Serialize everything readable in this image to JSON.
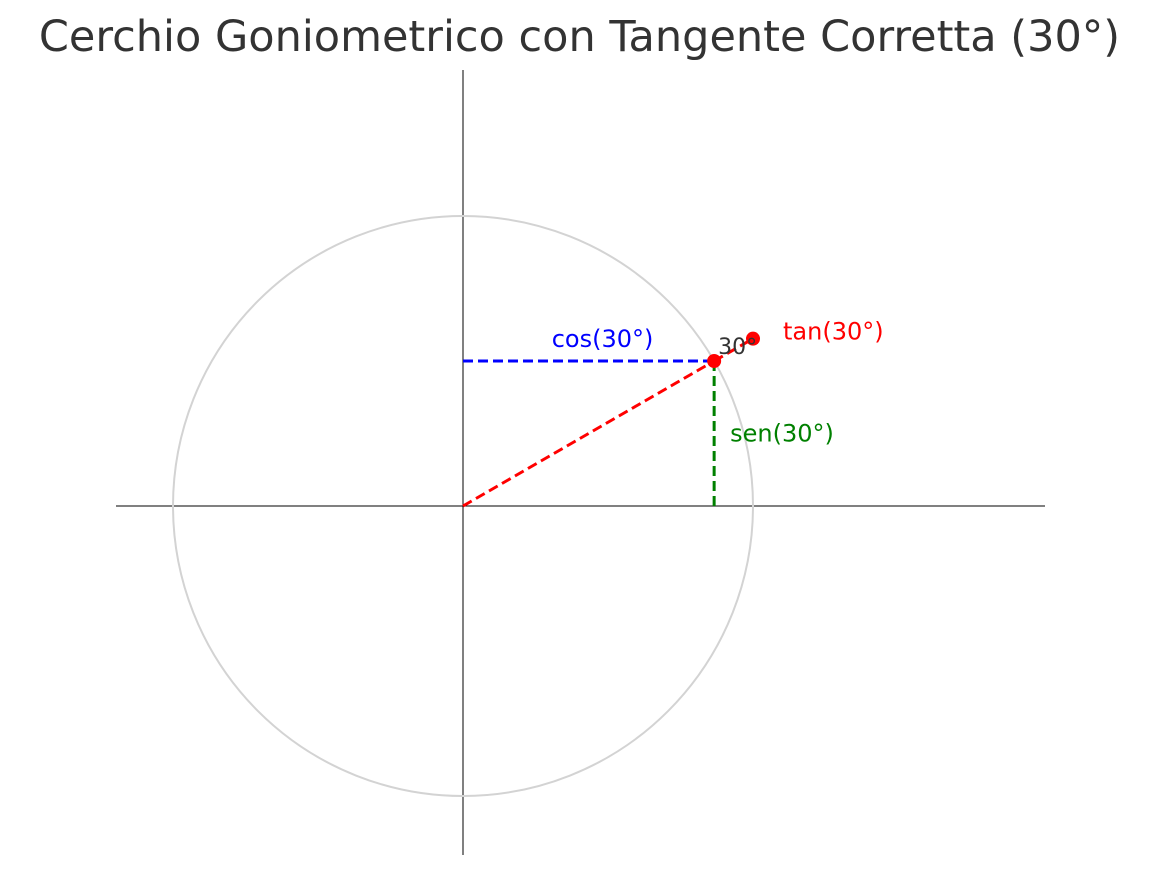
{
  "title": "Cerchio Goniometrico con Tangente Corretta (30°)",
  "angle_deg": 30,
  "labels": {
    "cos": "cos(30°)",
    "sen": "sen(30°)",
    "tan": "tan(30°)",
    "angle": "30°"
  },
  "colors": {
    "circle": "#d3d3d3",
    "axes": "#000000",
    "radius": "#ff0000",
    "cos": "#0000ff",
    "sen": "#008000",
    "tan": "#ff0000",
    "angle_label": "#333333"
  },
  "chart_data": {
    "type": "diagram",
    "title": "Cerchio Goniometrico con Tangente Corretta (30°)",
    "unit_circle_radius": 1,
    "xlim": [
      -1.2,
      2.0
    ],
    "ylim": [
      -1.2,
      1.5
    ],
    "points": [
      {
        "name": "point-on-circle",
        "x": 0.866,
        "y": 0.5
      },
      {
        "name": "tangent-point",
        "x": 1.0,
        "y": 0.577
      }
    ],
    "segments": [
      {
        "name": "radius",
        "from": [
          0,
          0
        ],
        "to": [
          0.866,
          0.5
        ]
      },
      {
        "name": "cos-segment",
        "from": [
          0,
          0.5
        ],
        "to": [
          0.866,
          0.5
        ]
      },
      {
        "name": "sen-segment",
        "from": [
          0.866,
          0
        ],
        "to": [
          0.866,
          0.5
        ]
      },
      {
        "name": "tan-segment",
        "from": [
          0.866,
          0.5
        ],
        "to": [
          1.0,
          0.577
        ]
      }
    ]
  }
}
